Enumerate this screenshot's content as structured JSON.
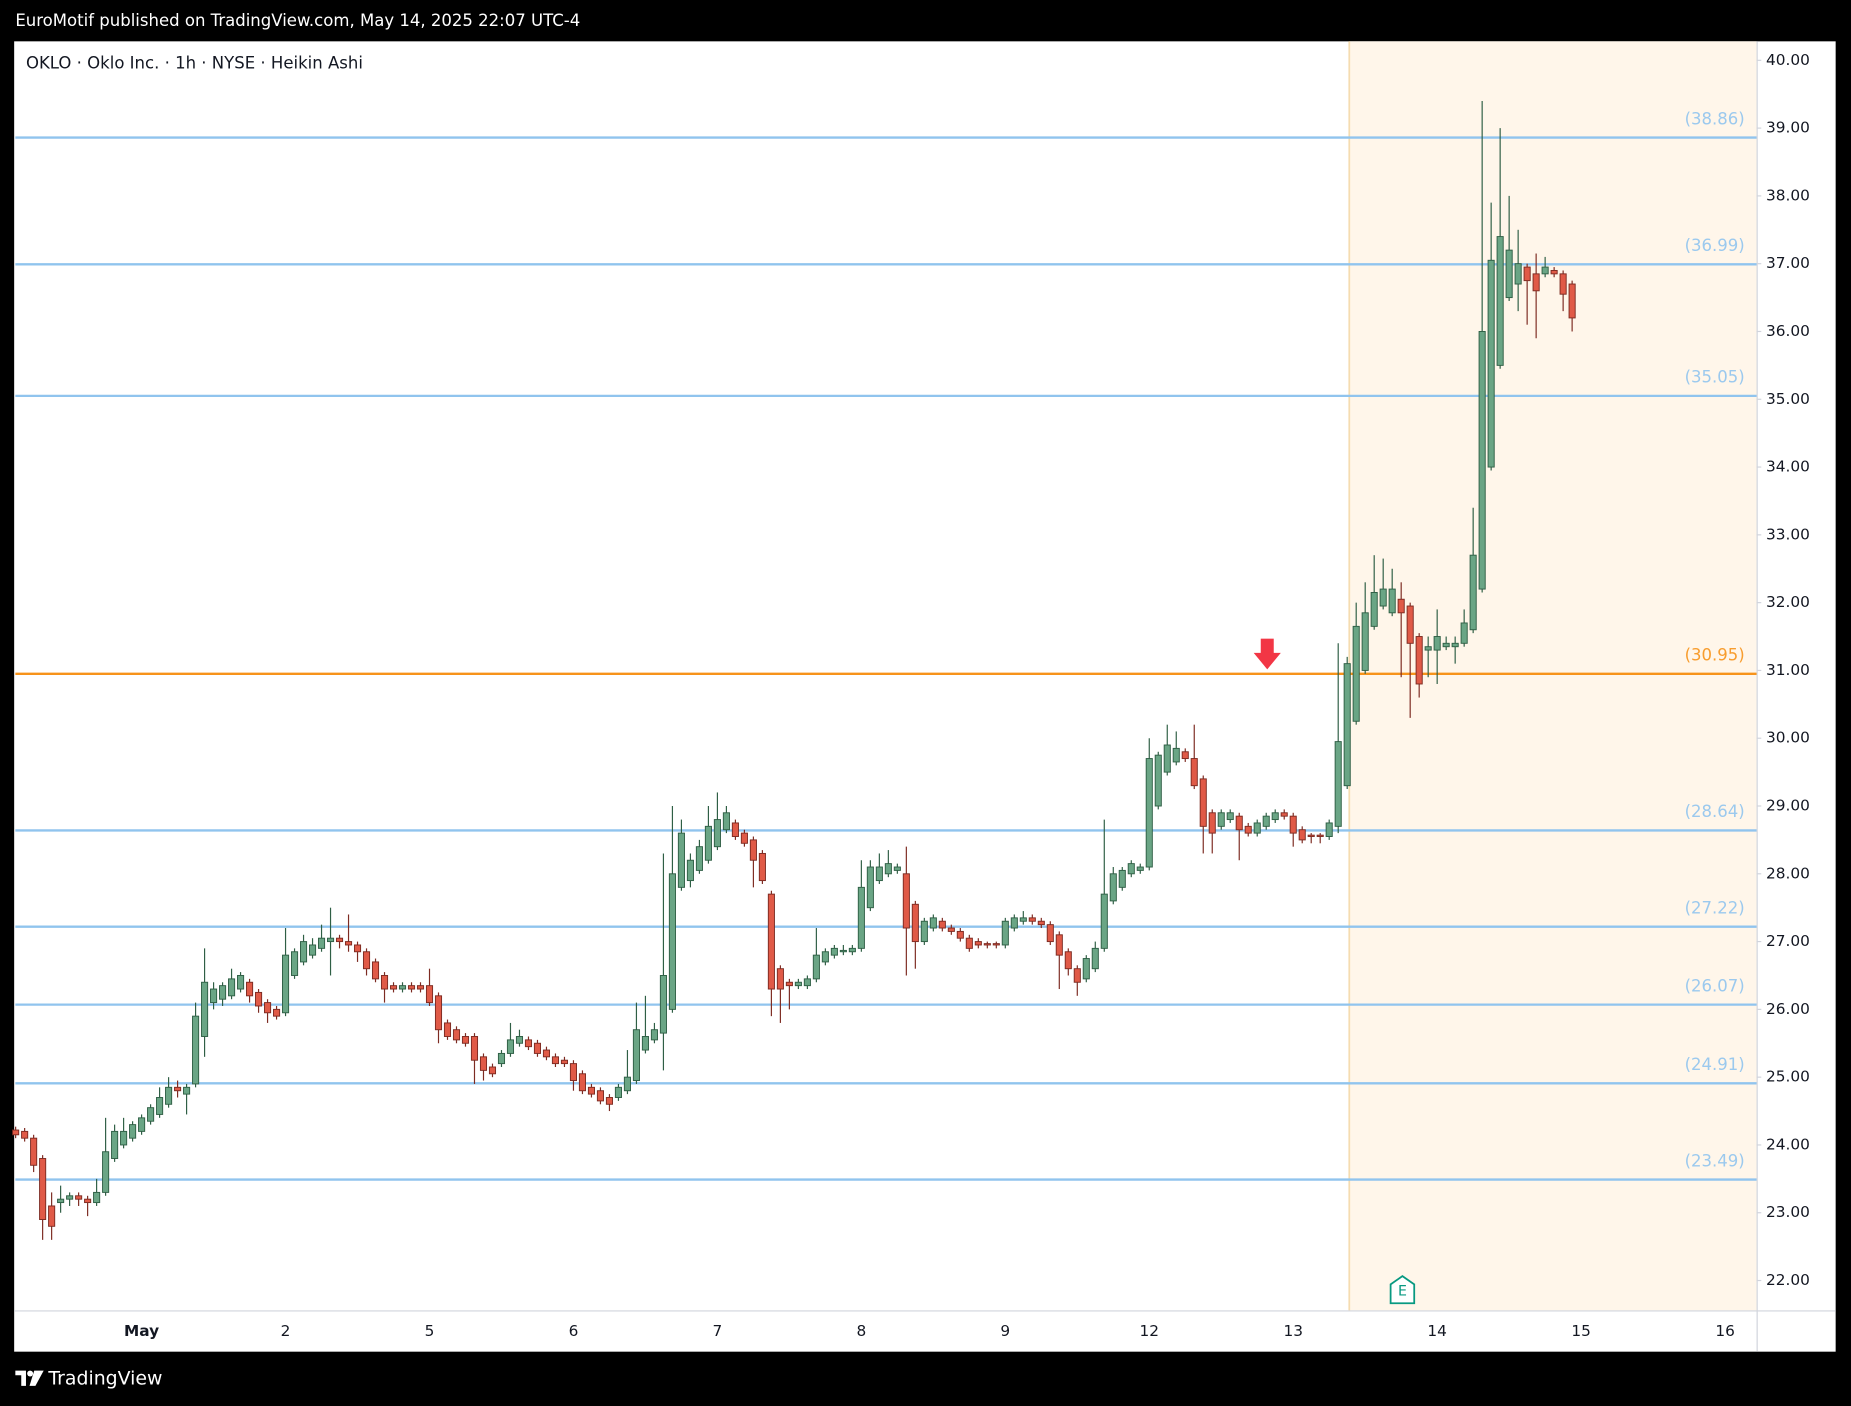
{
  "header": {
    "publisher": "EuroMotif published on TradingView.com, May 14, 2025 22:07 UTC-4"
  },
  "footer": {
    "brand": "TradingView"
  },
  "chart_data": {
    "type": "candlestick",
    "title": "OKLO · Oklo Inc. · 1h · NYSE · Heikin Ashi",
    "up_color": "#6aa585",
    "up_border": "#2f5f45",
    "down_color": "#e05a47",
    "down_border": "#7d2b22",
    "ylim": [
      21.56,
      40.28
    ],
    "yticks": [
      {
        "value": 22,
        "label": "22.00"
      },
      {
        "value": 23,
        "label": "23.00"
      },
      {
        "value": 24,
        "label": "24.00"
      },
      {
        "value": 25,
        "label": "25.00"
      },
      {
        "value": 26,
        "label": "26.00"
      },
      {
        "value": 27,
        "label": "27.00"
      },
      {
        "value": 28,
        "label": "28.00"
      },
      {
        "value": 29,
        "label": "29.00"
      },
      {
        "value": 30,
        "label": "30.00"
      },
      {
        "value": 31,
        "label": "31.00"
      },
      {
        "value": 32,
        "label": "32.00"
      },
      {
        "value": 33,
        "label": "33.00"
      },
      {
        "value": 34,
        "label": "34.00"
      },
      {
        "value": 35,
        "label": "35.00"
      },
      {
        "value": 36,
        "label": "36.00"
      },
      {
        "value": 37,
        "label": "37.00"
      },
      {
        "value": 38,
        "label": "38.00"
      },
      {
        "value": 39,
        "label": "39.00"
      },
      {
        "value": 40,
        "label": "40.00"
      }
    ],
    "levels": [
      {
        "value": 38.86,
        "label": "(38.86)",
        "color": "#90c4ee"
      },
      {
        "value": 36.99,
        "label": "(36.99)",
        "color": "#90c4ee"
      },
      {
        "value": 35.05,
        "label": "(35.05)",
        "color": "#90c4ee"
      },
      {
        "value": 30.95,
        "label": "(30.95)",
        "color": "#f7931a"
      },
      {
        "value": 28.64,
        "label": "(28.64)",
        "color": "#90c4ee"
      },
      {
        "value": 27.22,
        "label": "(27.22)",
        "color": "#90c4ee"
      },
      {
        "value": 26.07,
        "label": "(26.07)",
        "color": "#90c4ee"
      },
      {
        "value": 24.91,
        "label": "(24.91)",
        "color": "#90c4ee"
      },
      {
        "value": 23.49,
        "label": "(23.49)",
        "color": "#90c4ee"
      }
    ],
    "earnings_marker": "E",
    "categories": [
      null,
      null,
      null,
      null,
      null,
      null,
      null,
      null,
      null,
      null,
      null,
      null,
      null,
      null,
      "May",
      null,
      null,
      null,
      null,
      null,
      null,
      null,
      null,
      null,
      null,
      null,
      null,
      null,
      null,
      null,
      "2",
      null,
      null,
      null,
      null,
      null,
      null,
      null,
      null,
      null,
      null,
      null,
      null,
      null,
      null,
      null,
      "5",
      null,
      null,
      null,
      null,
      null,
      null,
      null,
      null,
      null,
      null,
      null,
      null,
      null,
      null,
      null,
      "6",
      null,
      null,
      null,
      null,
      null,
      null,
      null,
      null,
      null,
      null,
      null,
      null,
      null,
      null,
      null,
      "7",
      null,
      null,
      null,
      null,
      null,
      null,
      null,
      null,
      null,
      null,
      null,
      null,
      null,
      null,
      null,
      "8",
      null,
      null,
      null,
      null,
      null,
      null,
      null,
      null,
      null,
      null,
      null,
      null,
      null,
      null,
      null,
      "9",
      null,
      null,
      null,
      null,
      null,
      null,
      null,
      null,
      null,
      null,
      null,
      null,
      null,
      null,
      null,
      "12",
      null,
      null,
      null,
      null,
      null,
      null,
      null,
      null,
      null,
      null,
      null,
      null,
      null,
      null,
      null,
      "13",
      null,
      null,
      null,
      null,
      null,
      null,
      null,
      null,
      null,
      null,
      null,
      null,
      null,
      null,
      null,
      "14",
      null,
      null,
      null,
      null,
      null,
      null,
      null,
      null,
      null,
      null,
      null,
      null,
      null,
      null,
      null,
      "15",
      null,
      null,
      null,
      null,
      null,
      null,
      null,
      null,
      null,
      null,
      null,
      null,
      null,
      null,
      null,
      "16",
      null,
      null,
      null
    ],
    "values": [
      [
        24.22,
        24.27,
        24.1,
        24.15
      ],
      [
        24.2,
        24.25,
        24.05,
        24.1
      ],
      [
        24.1,
        24.15,
        23.6,
        23.7
      ],
      [
        23.8,
        23.85,
        22.6,
        22.9
      ],
      [
        23.1,
        23.3,
        22.6,
        22.8
      ],
      [
        23.15,
        23.4,
        23.0,
        23.2
      ],
      [
        23.2,
        23.3,
        23.1,
        23.25
      ],
      [
        23.25,
        23.3,
        23.1,
        23.2
      ],
      [
        23.2,
        23.25,
        22.95,
        23.15
      ],
      [
        23.15,
        23.5,
        23.1,
        23.3
      ],
      [
        23.3,
        24.4,
        23.25,
        23.9
      ],
      [
        23.8,
        24.3,
        23.75,
        24.2
      ],
      [
        24.0,
        24.4,
        23.95,
        24.2
      ],
      [
        24.1,
        24.35,
        24.05,
        24.3
      ],
      [
        24.2,
        24.45,
        24.15,
        24.4
      ],
      [
        24.35,
        24.6,
        24.3,
        24.55
      ],
      [
        24.45,
        24.85,
        24.4,
        24.7
      ],
      [
        24.6,
        25.0,
        24.55,
        24.85
      ],
      [
        24.85,
        24.95,
        24.7,
        24.8
      ],
      [
        24.75,
        24.9,
        24.45,
        24.85
      ],
      [
        24.9,
        26.1,
        24.85,
        25.9
      ],
      [
        25.6,
        26.9,
        25.3,
        26.4
      ],
      [
        26.1,
        26.4,
        26.0,
        26.3
      ],
      [
        26.15,
        26.4,
        26.05,
        26.35
      ],
      [
        26.2,
        26.6,
        26.15,
        26.45
      ],
      [
        26.3,
        26.55,
        26.25,
        26.5
      ],
      [
        26.4,
        26.45,
        26.1,
        26.2
      ],
      [
        26.25,
        26.3,
        25.95,
        26.05
      ],
      [
        26.1,
        26.15,
        25.8,
        25.95
      ],
      [
        26.0,
        26.05,
        25.85,
        25.9
      ],
      [
        25.95,
        27.2,
        25.9,
        26.8
      ],
      [
        26.5,
        26.9,
        26.45,
        26.85
      ],
      [
        26.7,
        27.1,
        26.65,
        27.0
      ],
      [
        26.8,
        27.05,
        26.75,
        26.95
      ],
      [
        26.9,
        27.25,
        26.85,
        27.05
      ],
      [
        27.0,
        27.5,
        26.5,
        27.05
      ],
      [
        27.05,
        27.1,
        26.9,
        27.0
      ],
      [
        27.0,
        27.4,
        26.85,
        26.95
      ],
      [
        26.95,
        27.0,
        26.7,
        26.85
      ],
      [
        26.85,
        26.9,
        26.5,
        26.6
      ],
      [
        26.7,
        26.75,
        26.4,
        26.45
      ],
      [
        26.5,
        26.55,
        26.1,
        26.3
      ],
      [
        26.35,
        26.4,
        26.25,
        26.3
      ],
      [
        26.3,
        26.4,
        26.25,
        26.35
      ],
      [
        26.35,
        26.4,
        26.25,
        26.3
      ],
      [
        26.35,
        26.4,
        26.25,
        26.3
      ],
      [
        26.35,
        26.6,
        26.05,
        26.1
      ],
      [
        26.2,
        26.25,
        25.5,
        25.7
      ],
      [
        25.8,
        25.85,
        25.55,
        25.6
      ],
      [
        25.7,
        25.75,
        25.5,
        25.55
      ],
      [
        25.6,
        25.65,
        25.45,
        25.5
      ],
      [
        25.6,
        25.65,
        24.9,
        25.25
      ],
      [
        25.3,
        25.35,
        24.95,
        25.1
      ],
      [
        25.15,
        25.2,
        25.0,
        25.05
      ],
      [
        25.2,
        25.4,
        25.15,
        25.35
      ],
      [
        25.35,
        25.8,
        25.3,
        25.55
      ],
      [
        25.5,
        25.7,
        25.45,
        25.6
      ],
      [
        25.55,
        25.6,
        25.4,
        25.45
      ],
      [
        25.5,
        25.55,
        25.3,
        25.35
      ],
      [
        25.4,
        25.45,
        25.25,
        25.3
      ],
      [
        25.3,
        25.35,
        25.15,
        25.2
      ],
      [
        25.25,
        25.3,
        25.15,
        25.2
      ],
      [
        25.2,
        25.25,
        24.8,
        24.95
      ],
      [
        25.05,
        25.1,
        24.75,
        24.8
      ],
      [
        24.85,
        24.9,
        24.7,
        24.75
      ],
      [
        24.8,
        24.85,
        24.6,
        24.65
      ],
      [
        24.7,
        24.75,
        24.5,
        24.6
      ],
      [
        24.7,
        24.9,
        24.65,
        24.85
      ],
      [
        24.8,
        25.4,
        24.75,
        25.0
      ],
      [
        24.95,
        26.1,
        24.9,
        25.7
      ],
      [
        25.4,
        26.2,
        25.35,
        25.6
      ],
      [
        25.55,
        25.8,
        25.5,
        25.7
      ],
      [
        25.65,
        28.3,
        25.1,
        26.5
      ],
      [
        26.0,
        29.0,
        25.95,
        28.0
      ],
      [
        27.8,
        28.8,
        27.75,
        28.6
      ],
      [
        27.9,
        28.3,
        27.8,
        28.2
      ],
      [
        28.05,
        28.5,
        28.0,
        28.4
      ],
      [
        28.2,
        29.0,
        28.15,
        28.7
      ],
      [
        28.4,
        29.2,
        28.35,
        28.8
      ],
      [
        28.65,
        29.0,
        28.6,
        28.9
      ],
      [
        28.75,
        28.8,
        28.5,
        28.55
      ],
      [
        28.6,
        28.65,
        28.4,
        28.45
      ],
      [
        28.5,
        28.55,
        27.8,
        28.2
      ],
      [
        28.3,
        28.35,
        27.85,
        27.9
      ],
      [
        27.7,
        27.75,
        25.9,
        26.3
      ],
      [
        26.6,
        26.65,
        25.8,
        26.3
      ],
      [
        26.4,
        26.45,
        26.0,
        26.35
      ],
      [
        26.35,
        26.45,
        26.3,
        26.4
      ],
      [
        26.35,
        26.5,
        26.3,
        26.45
      ],
      [
        26.45,
        27.2,
        26.4,
        26.8
      ],
      [
        26.7,
        26.9,
        26.65,
        26.85
      ],
      [
        26.8,
        26.95,
        26.75,
        26.9
      ],
      [
        26.85,
        26.95,
        26.8,
        26.87
      ],
      [
        26.85,
        26.95,
        26.8,
        26.9
      ],
      [
        26.9,
        28.2,
        26.85,
        27.8
      ],
      [
        27.5,
        28.2,
        27.45,
        28.1
      ],
      [
        27.9,
        28.3,
        27.85,
        28.1
      ],
      [
        28.0,
        28.35,
        27.95,
        28.15
      ],
      [
        28.05,
        28.15,
        28.0,
        28.1
      ],
      [
        28.0,
        28.4,
        26.5,
        27.2
      ],
      [
        27.55,
        27.6,
        26.6,
        27.0
      ],
      [
        27.0,
        27.35,
        26.95,
        27.3
      ],
      [
        27.2,
        27.4,
        27.15,
        27.35
      ],
      [
        27.3,
        27.35,
        27.15,
        27.2
      ],
      [
        27.2,
        27.25,
        27.1,
        27.15
      ],
      [
        27.15,
        27.2,
        27.0,
        27.05
      ],
      [
        27.05,
        27.1,
        26.85,
        26.9
      ],
      [
        27.0,
        27.05,
        26.9,
        26.95
      ],
      [
        26.97,
        27.0,
        26.9,
        26.95
      ],
      [
        26.97,
        27.0,
        26.9,
        26.95
      ],
      [
        26.95,
        27.35,
        26.9,
        27.3
      ],
      [
        27.2,
        27.4,
        27.15,
        27.35
      ],
      [
        27.3,
        27.45,
        27.25,
        27.35
      ],
      [
        27.35,
        27.4,
        27.25,
        27.3
      ],
      [
        27.3,
        27.35,
        27.2,
        27.25
      ],
      [
        27.25,
        27.3,
        26.95,
        27.0
      ],
      [
        27.1,
        27.15,
        26.3,
        26.8
      ],
      [
        26.85,
        26.9,
        26.5,
        26.6
      ],
      [
        26.6,
        26.65,
        26.2,
        26.4
      ],
      [
        26.45,
        26.8,
        26.4,
        26.75
      ],
      [
        26.6,
        27.0,
        26.55,
        26.9
      ],
      [
        26.9,
        28.8,
        26.85,
        27.7
      ],
      [
        27.6,
        28.1,
        27.55,
        28.0
      ],
      [
        27.8,
        28.1,
        27.75,
        28.05
      ],
      [
        28.0,
        28.2,
        27.95,
        28.15
      ],
      [
        28.05,
        28.15,
        28.0,
        28.1
      ],
      [
        28.1,
        30.0,
        28.05,
        29.7
      ],
      [
        29.0,
        29.8,
        28.95,
        29.75
      ],
      [
        29.5,
        30.2,
        29.45,
        29.9
      ],
      [
        29.65,
        30.1,
        29.6,
        29.85
      ],
      [
        29.8,
        29.85,
        29.65,
        29.7
      ],
      [
        29.7,
        30.2,
        29.25,
        29.3
      ],
      [
        29.4,
        29.45,
        28.3,
        28.7
      ],
      [
        28.9,
        28.95,
        28.3,
        28.6
      ],
      [
        28.7,
        28.95,
        28.65,
        28.9
      ],
      [
        28.8,
        28.95,
        28.75,
        28.9
      ],
      [
        28.85,
        28.9,
        28.2,
        28.65
      ],
      [
        28.7,
        28.75,
        28.55,
        28.6
      ],
      [
        28.6,
        28.8,
        28.55,
        28.75
      ],
      [
        28.7,
        28.9,
        28.65,
        28.85
      ],
      [
        28.8,
        28.95,
        28.75,
        28.9
      ],
      [
        28.9,
        28.95,
        28.8,
        28.85
      ],
      [
        28.85,
        28.9,
        28.4,
        28.6
      ],
      [
        28.65,
        28.7,
        28.45,
        28.5
      ],
      [
        28.57,
        28.6,
        28.45,
        28.55
      ],
      [
        28.57,
        28.6,
        28.45,
        28.55
      ],
      [
        28.55,
        28.8,
        28.5,
        28.75
      ],
      [
        28.7,
        31.4,
        28.6,
        29.95
      ],
      [
        29.3,
        31.2,
        29.25,
        31.1
      ],
      [
        30.25,
        32.0,
        30.2,
        31.65
      ],
      [
        31.0,
        32.3,
        30.95,
        31.85
      ],
      [
        31.65,
        32.7,
        31.6,
        32.15
      ],
      [
        31.95,
        32.65,
        31.9,
        32.2
      ],
      [
        31.85,
        32.5,
        31.8,
        32.2
      ],
      [
        32.05,
        32.3,
        30.9,
        31.85
      ],
      [
        31.95,
        32.0,
        30.3,
        31.4
      ],
      [
        31.5,
        31.55,
        30.6,
        30.8
      ],
      [
        31.3,
        31.5,
        30.9,
        31.35
      ],
      [
        31.3,
        31.9,
        30.8,
        31.5
      ],
      [
        31.35,
        31.5,
        31.3,
        31.4
      ],
      [
        31.35,
        31.5,
        31.1,
        31.4
      ],
      [
        31.4,
        31.9,
        31.35,
        31.7
      ],
      [
        31.6,
        33.4,
        31.55,
        32.7
      ],
      [
        32.2,
        39.4,
        32.15,
        36.0
      ],
      [
        34.0,
        37.9,
        33.95,
        37.05
      ],
      [
        35.5,
        39.0,
        35.45,
        37.4
      ],
      [
        36.5,
        38.0,
        36.45,
        37.2
      ],
      [
        36.7,
        37.5,
        36.3,
        37.0
      ],
      [
        36.95,
        37.0,
        36.1,
        36.75
      ],
      [
        36.85,
        37.15,
        35.9,
        36.6
      ],
      [
        36.85,
        37.1,
        36.8,
        36.95
      ],
      [
        36.9,
        36.95,
        36.8,
        36.85
      ],
      [
        36.85,
        36.9,
        36.3,
        36.55
      ],
      [
        36.7,
        36.75,
        36.0,
        36.2
      ],
      null,
      null,
      null,
      null,
      null,
      null,
      null,
      null,
      null,
      null,
      null,
      null,
      null,
      null,
      null,
      null,
      null,
      null,
      null,
      null
    ]
  }
}
